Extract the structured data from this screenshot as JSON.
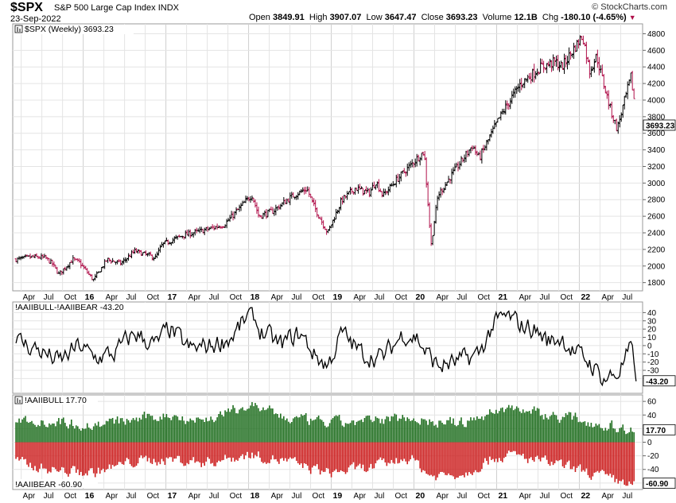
{
  "header": {
    "symbol": "$SPX",
    "description": "S&P 500 Large Cap Index",
    "exchange": "INDX",
    "date": "23-Sep-2022",
    "open_label": "Open",
    "open": "3849.91",
    "high_label": "High",
    "high": "3907.07",
    "low_label": "Low",
    "low": "3647.47",
    "close_label": "Close",
    "close": "3693.23",
    "volume_label": "Volume",
    "volume": "12.1B",
    "chg_label": "Chg",
    "chg": "-180.10 (-4.65%)",
    "logo": "© StockCharts.com"
  },
  "colors": {
    "up": "#000000",
    "down": "#b0104a",
    "bull": "#1f6e1f",
    "bear": "#cc1f1f",
    "grid": "#e4e4e4",
    "tag_bg": "#ffffff"
  },
  "chart_data": [
    {
      "type": "ohlc",
      "title": "$SPX (Weekly) 3693.23",
      "last_value": "3693.23",
      "ylim": [
        1720,
        4900
      ],
      "yticks": [
        1800,
        2000,
        2200,
        2400,
        2600,
        2800,
        3000,
        3200,
        3400,
        3600,
        3800,
        4000,
        4200,
        4400,
        4600,
        4800
      ],
      "x_ticks": [
        "Apr",
        "Jul",
        "Oct",
        "16",
        "Apr",
        "Jul",
        "Oct",
        "17",
        "Apr",
        "Jul",
        "Oct",
        "18",
        "Apr",
        "Jul",
        "Oct",
        "19",
        "Apr",
        "Jul",
        "Oct",
        "20",
        "Apr",
        "Jul",
        "Oct",
        "21",
        "Apr",
        "Jul",
        "Oct",
        "22",
        "Apr",
        "Jul"
      ],
      "year_ticks": [
        "16",
        "17",
        "18",
        "19",
        "20",
        "21",
        "22"
      ],
      "x_range": [
        "2015-03",
        "2022-09"
      ],
      "weekly_close_anchors": [
        [
          "2015-03",
          2080
        ],
        [
          "2015-05",
          2110
        ],
        [
          "2015-07",
          2100
        ],
        [
          "2015-08",
          2030
        ],
        [
          "2015-09",
          1900
        ],
        [
          "2015-11",
          2080
        ],
        [
          "2015-12",
          2040
        ],
        [
          "2016-02",
          1830
        ],
        [
          "2016-04",
          2080
        ],
        [
          "2016-06",
          2030
        ],
        [
          "2016-08",
          2180
        ],
        [
          "2016-11",
          2100
        ],
        [
          "2016-12",
          2260
        ],
        [
          "2017-03",
          2370
        ],
        [
          "2017-06",
          2430
        ],
        [
          "2017-09",
          2500
        ],
        [
          "2018-01",
          2860
        ],
        [
          "2018-02",
          2600
        ],
        [
          "2018-04",
          2660
        ],
        [
          "2018-07",
          2850
        ],
        [
          "2018-09",
          2930
        ],
        [
          "2018-10",
          2720
        ],
        [
          "2018-12",
          2400
        ],
        [
          "2019-02",
          2790
        ],
        [
          "2019-04",
          2940
        ],
        [
          "2019-06",
          2880
        ],
        [
          "2019-07",
          3020
        ],
        [
          "2019-08",
          2850
        ],
        [
          "2019-10",
          3040
        ],
        [
          "2020-01",
          3300
        ],
        [
          "2020-02",
          3380
        ],
        [
          "2020-03",
          2250
        ],
        [
          "2020-04",
          2850
        ],
        [
          "2020-06",
          3100
        ],
        [
          "2020-09",
          3450
        ],
        [
          "2020-10",
          3300
        ],
        [
          "2021-01",
          3800
        ],
        [
          "2021-04",
          4200
        ],
        [
          "2021-07",
          4400
        ],
        [
          "2021-09",
          4460
        ],
        [
          "2021-10",
          4400
        ],
        [
          "2022-01",
          4780
        ],
        [
          "2022-02",
          4350
        ],
        [
          "2022-03",
          4530
        ],
        [
          "2022-05",
          3900
        ],
        [
          "2022-06",
          3650
        ],
        [
          "2022-08",
          4280
        ],
        [
          "2022-09",
          3693
        ]
      ]
    },
    {
      "type": "line",
      "title": "!AAIIBULL-!AAIIBEAR -43.20",
      "last_value": "-43.20",
      "ylim": [
        -55,
        50
      ],
      "yticks": [
        -40,
        -30,
        -20,
        -10,
        0,
        10,
        20,
        30,
        40
      ],
      "anchors": [
        [
          "2015-03",
          5
        ],
        [
          "2015-06",
          -5
        ],
        [
          "2015-09",
          -20
        ],
        [
          "2015-12",
          0
        ],
        [
          "2016-02",
          -15
        ],
        [
          "2016-05",
          -10
        ],
        [
          "2016-08",
          15
        ],
        [
          "2016-11",
          0
        ],
        [
          "2017-01",
          20
        ],
        [
          "2017-04",
          -5
        ],
        [
          "2017-07",
          0
        ],
        [
          "2017-10",
          10
        ],
        [
          "2018-01",
          40
        ],
        [
          "2018-02",
          20
        ],
        [
          "2018-05",
          0
        ],
        [
          "2018-08",
          15
        ],
        [
          "2018-10",
          -10
        ],
        [
          "2018-12",
          -25
        ],
        [
          "2019-02",
          15
        ],
        [
          "2019-05",
          -10
        ],
        [
          "2019-08",
          -15
        ],
        [
          "2019-11",
          15
        ],
        [
          "2020-01",
          10
        ],
        [
          "2020-02",
          -5
        ],
        [
          "2020-04",
          -25
        ],
        [
          "2020-07",
          -20
        ],
        [
          "2020-10",
          -10
        ],
        [
          "2020-12",
          25
        ],
        [
          "2021-02",
          35
        ],
        [
          "2021-04",
          25
        ],
        [
          "2021-06",
          20
        ],
        [
          "2021-08",
          5
        ],
        [
          "2021-10",
          10
        ],
        [
          "2021-12",
          -10
        ],
        [
          "2022-02",
          -20
        ],
        [
          "2022-04",
          -40
        ],
        [
          "2022-06",
          -35
        ],
        [
          "2022-08",
          -5
        ],
        [
          "2022-09",
          -43.2
        ]
      ]
    },
    {
      "type": "bar",
      "title": "!AAIIBULL 17.70",
      "bull_last": "17.70",
      "bear_title": "!AAIIBEAR -60.90",
      "bear_last": "-60.90",
      "ylim": [
        -66,
        66
      ],
      "yticks": [
        -60,
        -40,
        -20,
        0,
        20,
        40,
        60
      ],
      "bull_anchors": [
        [
          "2015-03",
          35
        ],
        [
          "2015-09",
          30
        ],
        [
          "2016-02",
          25
        ],
        [
          "2016-08",
          33
        ],
        [
          "2017-01",
          40
        ],
        [
          "2017-06",
          32
        ],
        [
          "2018-01",
          55
        ],
        [
          "2018-06",
          35
        ],
        [
          "2018-12",
          28
        ],
        [
          "2019-06",
          30
        ],
        [
          "2019-12",
          38
        ],
        [
          "2020-03",
          30
        ],
        [
          "2020-08",
          28
        ],
        [
          "2020-12",
          45
        ],
        [
          "2021-03",
          52
        ],
        [
          "2021-08",
          40
        ],
        [
          "2021-12",
          35
        ],
        [
          "2022-03",
          28
        ],
        [
          "2022-06",
          22
        ],
        [
          "2022-09",
          17.7
        ]
      ],
      "bear_anchors": [
        [
          "2015-03",
          -30
        ],
        [
          "2015-09",
          -42
        ],
        [
          "2016-02",
          -45
        ],
        [
          "2016-08",
          -28
        ],
        [
          "2017-01",
          -25
        ],
        [
          "2017-06",
          -30
        ],
        [
          "2018-01",
          -18
        ],
        [
          "2018-06",
          -28
        ],
        [
          "2018-12",
          -45
        ],
        [
          "2019-06",
          -38
        ],
        [
          "2019-12",
          -22
        ],
        [
          "2020-03",
          -50
        ],
        [
          "2020-08",
          -45
        ],
        [
          "2020-12",
          -22
        ],
        [
          "2021-03",
          -20
        ],
        [
          "2021-08",
          -30
        ],
        [
          "2021-12",
          -40
        ],
        [
          "2022-03",
          -48
        ],
        [
          "2022-06",
          -58
        ],
        [
          "2022-09",
          -60.9
        ]
      ]
    }
  ]
}
